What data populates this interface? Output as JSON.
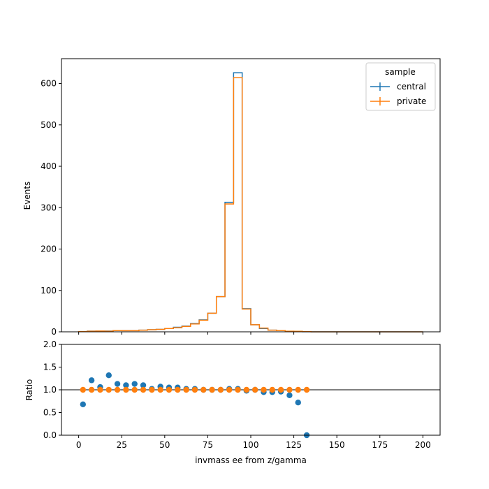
{
  "chart_data": [
    {
      "type": "line",
      "subtype": "step-histogram",
      "ylabel": "Events",
      "xlim": [
        -10,
        210
      ],
      "ylim": [
        0,
        660
      ],
      "x_ticks": [
        0,
        25,
        50,
        75,
        100,
        125,
        150,
        175,
        200
      ],
      "y_ticks": [
        0,
        100,
        200,
        300,
        400,
        500,
        600
      ],
      "y_tick_labels": [
        "0",
        "100",
        "200",
        "300",
        "400",
        "500",
        "600"
      ],
      "bin_edges": [
        0,
        5,
        10,
        15,
        20,
        25,
        30,
        35,
        40,
        45,
        50,
        55,
        60,
        65,
        70,
        75,
        80,
        85,
        90,
        95,
        100,
        105,
        110,
        115,
        120,
        125,
        130,
        135,
        140,
        145,
        150,
        155,
        160,
        165,
        170,
        175,
        180,
        185,
        190,
        195,
        200
      ],
      "legend": {
        "title": "sample",
        "location": "upper right"
      },
      "series": [
        {
          "name": "central",
          "color": "#1f77b4",
          "values": [
            0.5,
            1.7,
            2,
            2,
            3,
            3,
            3,
            4,
            5,
            6,
            8,
            11,
            14,
            20,
            29,
            45,
            85,
            313,
            626,
            56,
            17,
            8,
            4,
            3,
            1.3,
            1,
            0.3,
            0,
            0,
            0,
            0,
            0,
            0,
            0,
            0,
            0,
            0,
            0,
            0,
            0
          ]
        },
        {
          "name": "private",
          "color": "#ff7f0e",
          "values": [
            0.6,
            1.4,
            2,
            1.5,
            3,
            2.8,
            2.7,
            4,
            5,
            6,
            8,
            10,
            13,
            19,
            28,
            45,
            85,
            309,
            614,
            55,
            17,
            9,
            4,
            3,
            1.5,
            1.3,
            0.4,
            0,
            0,
            0,
            0,
            0,
            0,
            0,
            0,
            0,
            0,
            0,
            0,
            0
          ]
        }
      ]
    },
    {
      "type": "scatter",
      "xlabel": "invmass ee from z/gamma",
      "ylabel": "Ratio",
      "xlim": [
        -10,
        210
      ],
      "ylim": [
        0,
        2
      ],
      "x_ticks": [
        0,
        25,
        50,
        75,
        100,
        125,
        150,
        175,
        200
      ],
      "x_tick_labels": [
        "0",
        "25",
        "50",
        "75",
        "100",
        "125",
        "150",
        "175",
        "200"
      ],
      "y_ticks": [
        0,
        0.5,
        1.0,
        1.5,
        2.0
      ],
      "y_tick_labels": [
        "0.0",
        "0.5",
        "1.0",
        "1.5",
        "2.0"
      ],
      "reference_line": 1.0,
      "x": [
        2.5,
        7.5,
        12.5,
        17.5,
        22.5,
        27.5,
        32.5,
        37.5,
        42.5,
        47.5,
        52.5,
        57.5,
        62.5,
        67.5,
        72.5,
        77.5,
        82.5,
        87.5,
        92.5,
        97.5,
        102.5,
        107.5,
        112.5,
        117.5,
        122.5,
        127.5,
        132.5
      ],
      "series": [
        {
          "name": "central",
          "color": "#1f77b4",
          "values": [
            0.68,
            1.21,
            1.06,
            1.32,
            1.13,
            1.1,
            1.13,
            1.1,
            1.02,
            1.07,
            1.05,
            1.05,
            1.02,
            1.02,
            1.0,
            1.0,
            1.0,
            1.02,
            1.02,
            0.98,
            1.0,
            0.95,
            0.95,
            0.96,
            0.88,
            0.72,
            0.0
          ]
        },
        {
          "name": "private",
          "color": "#ff7f0e",
          "values": [
            1,
            1,
            1,
            1,
            1,
            1,
            1,
            1,
            1,
            1,
            1,
            1,
            1,
            1,
            1,
            1,
            1,
            1,
            1,
            1,
            1,
            1,
            1,
            1,
            1,
            1,
            1
          ]
        }
      ]
    }
  ]
}
